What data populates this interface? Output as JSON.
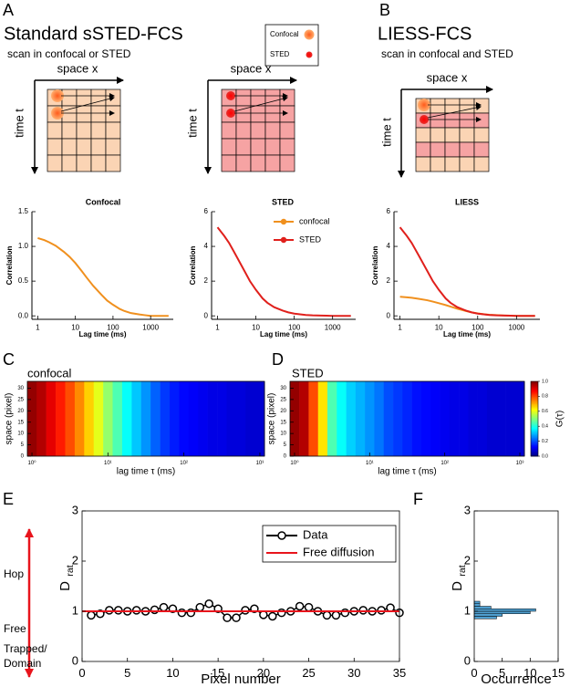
{
  "diagram": {
    "a": {
      "letter": "A",
      "title": "Standard sSTED-FCS",
      "subtitle": "scan in confocal or STED",
      "confocal_scheme": {
        "x_label": "space x",
        "y_label": "time t"
      },
      "sted_scheme": {
        "x_label": "space x",
        "y_label": "time t"
      }
    },
    "legend": {
      "confocal": "Confocal",
      "sted": "STED"
    },
    "b": {
      "letter": "B",
      "title": "LIESS-FCS",
      "subtitle": "scan in confocal and STED",
      "scheme": {
        "x_label": "space x",
        "y_label": "time t"
      }
    }
  },
  "chart_data": [
    {
      "type": "line",
      "title": "Confocal",
      "x_label": "Lag time (ms)",
      "y_label": "Correlation",
      "xlog": true,
      "x": [
        1,
        1.5,
        2,
        3,
        5,
        7,
        10,
        15,
        20,
        30,
        50,
        70,
        100,
        150,
        200,
        300,
        500,
        700,
        1000,
        2000,
        3000
      ],
      "series": [
        {
          "color": "#f0901e",
          "values": [
            1.12,
            1.09,
            1.06,
            1.01,
            0.92,
            0.85,
            0.76,
            0.64,
            0.55,
            0.43,
            0.3,
            0.22,
            0.16,
            0.1,
            0.07,
            0.04,
            0.02,
            0.01,
            0.0,
            0.0,
            0.0
          ]
        }
      ],
      "xlim": [
        0.7,
        4000
      ],
      "ylim": [
        -0.05,
        1.5
      ],
      "xticks": [
        1,
        10,
        100,
        1000
      ],
      "yticks": [
        {
          "value": 0,
          "label": "0.0"
        },
        0.5,
        {
          "value": 1,
          "label": "1.0"
        },
        1.5
      ]
    },
    {
      "type": "line",
      "title": "STED",
      "x_label": "Lag time (ms)",
      "y_label": "Correlation",
      "xlog": true,
      "x": [
        1,
        1.5,
        2,
        3,
        5,
        7,
        10,
        15,
        20,
        30,
        50,
        70,
        100,
        150,
        200,
        300,
        500,
        700,
        1000,
        2000,
        3000
      ],
      "series": [
        {
          "color": "#e0201c",
          "values": [
            5.1,
            4.6,
            4.2,
            3.5,
            2.6,
            2.0,
            1.5,
            1.0,
            0.75,
            0.5,
            0.3,
            0.2,
            0.13,
            0.08,
            0.05,
            0.03,
            0.02,
            0.01,
            0.0,
            0.0,
            0.0
          ]
        }
      ],
      "xlim": [
        0.7,
        4000
      ],
      "ylim": [
        -0.2,
        6
      ],
      "xticks": [
        1,
        10,
        100,
        1000
      ],
      "yticks": [
        0,
        2,
        4,
        6
      ]
    },
    {
      "type": "line",
      "title": "LIESS",
      "x_label": "Lag time (ms)",
      "y_label": "Correlation",
      "xlog": true,
      "x": [
        1,
        1.5,
        2,
        3,
        5,
        7,
        10,
        15,
        20,
        30,
        50,
        70,
        100,
        150,
        200,
        300,
        500,
        700,
        1000,
        2000,
        3000
      ],
      "series": [
        {
          "name": "confocal",
          "color": "#f0901e",
          "values": [
            1.1,
            1.07,
            1.04,
            0.98,
            0.9,
            0.82,
            0.73,
            0.62,
            0.53,
            0.41,
            0.28,
            0.2,
            0.14,
            0.09,
            0.06,
            0.04,
            0.02,
            0.01,
            0.0,
            0.0,
            0.0
          ]
        },
        {
          "name": "STED",
          "color": "#e0201c",
          "values": [
            5.1,
            4.6,
            4.2,
            3.5,
            2.6,
            2.0,
            1.5,
            1.0,
            0.75,
            0.5,
            0.3,
            0.2,
            0.13,
            0.08,
            0.05,
            0.03,
            0.02,
            0.01,
            0.0,
            0.0,
            0.0
          ]
        }
      ],
      "xlim": [
        0.7,
        4000
      ],
      "ylim": [
        -0.2,
        6
      ],
      "xticks": [
        1,
        10,
        100,
        1000
      ],
      "yticks": [
        0,
        2,
        4,
        6
      ]
    },
    {
      "type": "heatmap",
      "panel": "C",
      "title": "confocal",
      "x_label": "lag time τ (ms)",
      "y_label": "space (pixel)",
      "xlog": true,
      "colormap": "jet",
      "clim": [
        0,
        1
      ],
      "x": [
        1,
        1.33,
        1.78,
        2.37,
        3.16,
        4.22,
        5.62,
        7.5,
        10,
        13.3,
        17.8,
        23.7,
        31.6,
        42.2,
        56.2,
        75,
        100,
        133,
        178,
        237,
        316,
        422,
        562,
        750,
        1000
      ],
      "values": [
        0.98,
        0.95,
        0.9,
        0.85,
        0.8,
        0.74,
        0.67,
        0.6,
        0.52,
        0.45,
        0.38,
        0.32,
        0.27,
        0.22,
        0.18,
        0.15,
        0.13,
        0.12,
        0.11,
        0.1,
        0.1,
        0.09,
        0.09,
        0.08,
        0.08
      ],
      "xlim": [
        0.87,
        1150
      ],
      "ylim": [
        0,
        33
      ],
      "xticks": [
        {
          "value": 1,
          "label": "10⁰"
        },
        {
          "value": 10,
          "label": "10¹"
        },
        {
          "value": 100,
          "label": "10²"
        },
        {
          "value": 1000,
          "label": "10³"
        }
      ],
      "yticks": [
        0,
        5,
        10,
        15,
        20,
        25,
        30
      ]
    },
    {
      "type": "heatmap",
      "panel": "D",
      "title": "STED",
      "x_label": "lag time τ (ms)",
      "y_label": "space (pixel)",
      "xlog": true,
      "colormap": "jet",
      "clim": [
        0,
        1
      ],
      "x": [
        1,
        1.33,
        1.78,
        2.37,
        3.16,
        4.22,
        5.62,
        7.5,
        10,
        13.3,
        17.8,
        23.7,
        31.6,
        42.2,
        56.2,
        75,
        100,
        133,
        178,
        237,
        316,
        422,
        562,
        750,
        1000
      ],
      "values": [
        0.98,
        0.95,
        0.8,
        0.65,
        0.45,
        0.38,
        0.33,
        0.3,
        0.27,
        0.24,
        0.2,
        0.18,
        0.16,
        0.14,
        0.13,
        0.12,
        0.11,
        0.1,
        0.1,
        0.09,
        0.09,
        0.08,
        0.08,
        0.08,
        0.08
      ],
      "xlim": [
        0.87,
        1150
      ],
      "ylim": [
        0,
        33
      ],
      "xticks": [
        {
          "value": 1,
          "label": "10⁰"
        },
        {
          "value": 10,
          "label": "10¹"
        },
        {
          "value": 100,
          "label": "10²"
        },
        {
          "value": 1000,
          "label": "10³"
        }
      ],
      "yticks": [
        0,
        5,
        10,
        15,
        20,
        25,
        30
      ],
      "colorbar_label": "G(τ)",
      "cticks": [
        {
          "value": 0,
          "label": "0.0"
        },
        0.2,
        0.4,
        0.6,
        0.8,
        {
          "value": 1,
          "label": "1.0"
        }
      ]
    },
    {
      "type": "line",
      "panel": "E",
      "x_label": "Pixel number",
      "y_label": "D",
      "y_label_sub": "rat",
      "annotations": [
        "Hop",
        "Free",
        "Trapped/",
        "Domain"
      ],
      "x": [
        1,
        2,
        3,
        4,
        5,
        6,
        7,
        8,
        9,
        10,
        11,
        12,
        13,
        14,
        15,
        16,
        17,
        18,
        19,
        20,
        21,
        22,
        23,
        24,
        25,
        26,
        27,
        28,
        29,
        30,
        31,
        32,
        33,
        34,
        35
      ],
      "series": [
        {
          "name": "Data",
          "color": "#000000",
          "marker": "o",
          "values": [
            0.92,
            0.95,
            1.02,
            1.02,
            1.0,
            1.02,
            1.0,
            1.03,
            1.08,
            1.05,
            0.97,
            0.97,
            1.08,
            1.15,
            1.05,
            0.87,
            0.87,
            1.02,
            1.05,
            0.93,
            0.9,
            0.97,
            1.0,
            1.1,
            1.08,
            1.0,
            0.92,
            0.92,
            0.97,
            1.0,
            1.02,
            1.0,
            1.02,
            1.07,
            0.97
          ]
        },
        {
          "name": "Free diffusion",
          "color": "#e8141c",
          "x": [
            0,
            35
          ],
          "values": [
            1,
            1
          ]
        }
      ],
      "xlim": [
        0,
        35
      ],
      "ylim": [
        0,
        3
      ],
      "xticks": [
        0,
        5,
        10,
        15,
        20,
        25,
        30,
        35
      ],
      "yticks": [
        0,
        1,
        2,
        3
      ]
    },
    {
      "type": "histogram",
      "panel": "F",
      "orientation": "horizontal",
      "x_label": "Occurrence",
      "y_label": "D",
      "y_label_sub": "rat",
      "color": "#4f9fd0",
      "bins": [
        0.85,
        0.9,
        0.95,
        1.0,
        1.05,
        1.1,
        1.15,
        1.2
      ],
      "counts": [
        4,
        5,
        10,
        11,
        3,
        1,
        1
      ],
      "xlim": [
        0,
        15
      ],
      "ylim": [
        0,
        3
      ],
      "xticks": [
        0,
        5,
        10,
        15
      ],
      "yticks": [
        0,
        1,
        2,
        3
      ]
    }
  ]
}
